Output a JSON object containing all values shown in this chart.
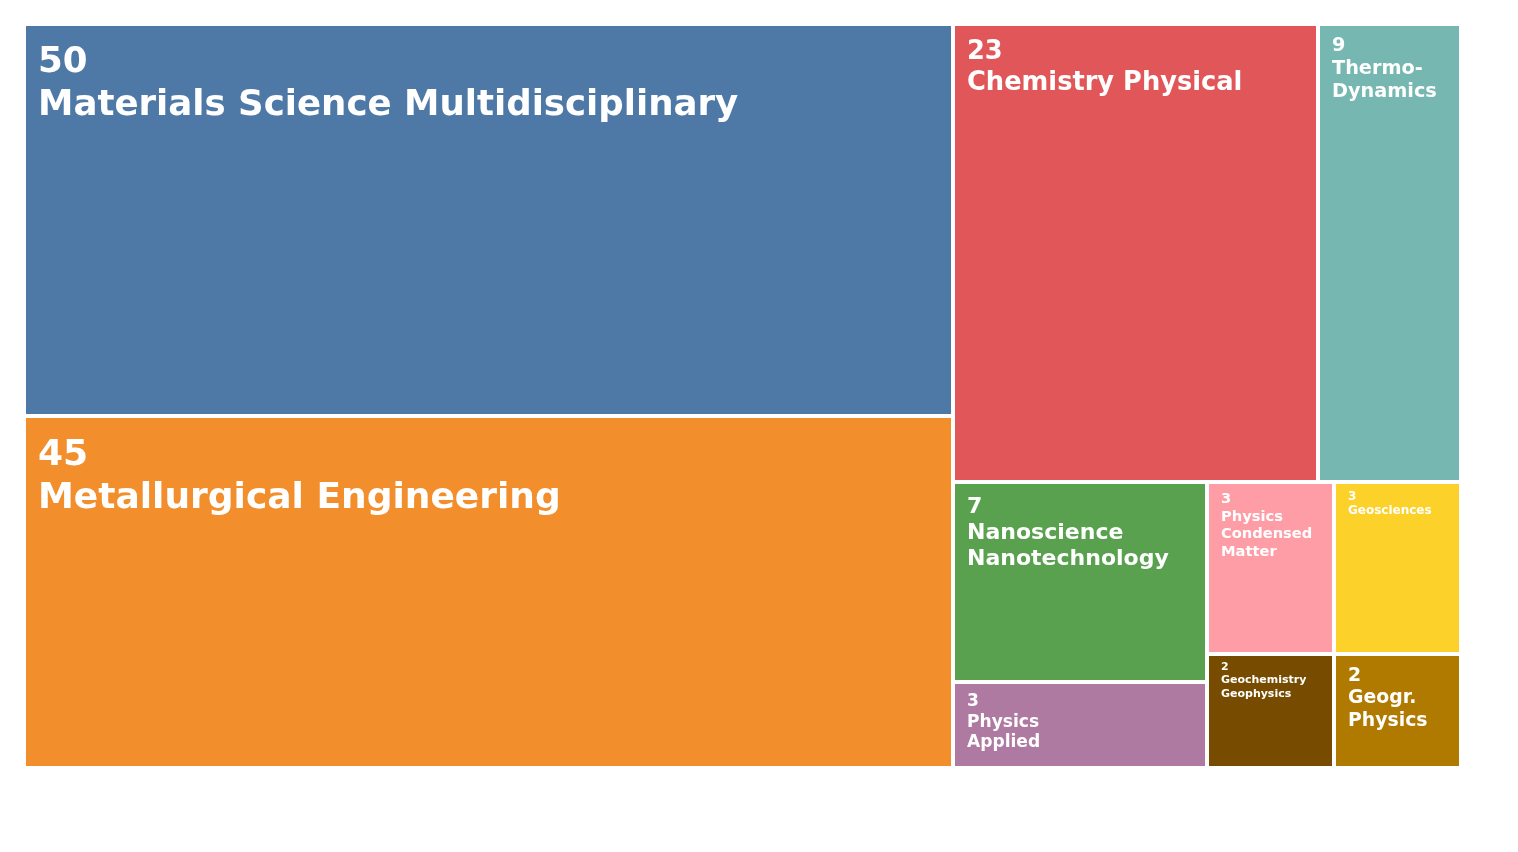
{
  "chart_data": {
    "type": "other",
    "categories": [
      "Materials Science Multidisciplinary",
      "Metallurgical Engineering",
      "Chemistry Physical",
      "Thermo-\nDynamics",
      "Nanoscience\nNanotechnology",
      "Physics\nApplied",
      "Physics\nCondensed\nMatter",
      "Geosciences",
      "Geochemistry\nGeophysics",
      "Geogr.\nPhysics"
    ],
    "values": [
      50,
      45,
      23,
      9,
      7,
      3,
      3,
      3,
      2,
      2
    ],
    "colors": [
      "#4e79a7",
      "#f28e2b",
      "#e15759",
      "#76b7b2",
      "#59a14f",
      "#af7aa1",
      "#ff9da7",
      "#fcd12a",
      "#774c00",
      "#b07a00"
    ],
    "data_labels": true
  }
}
